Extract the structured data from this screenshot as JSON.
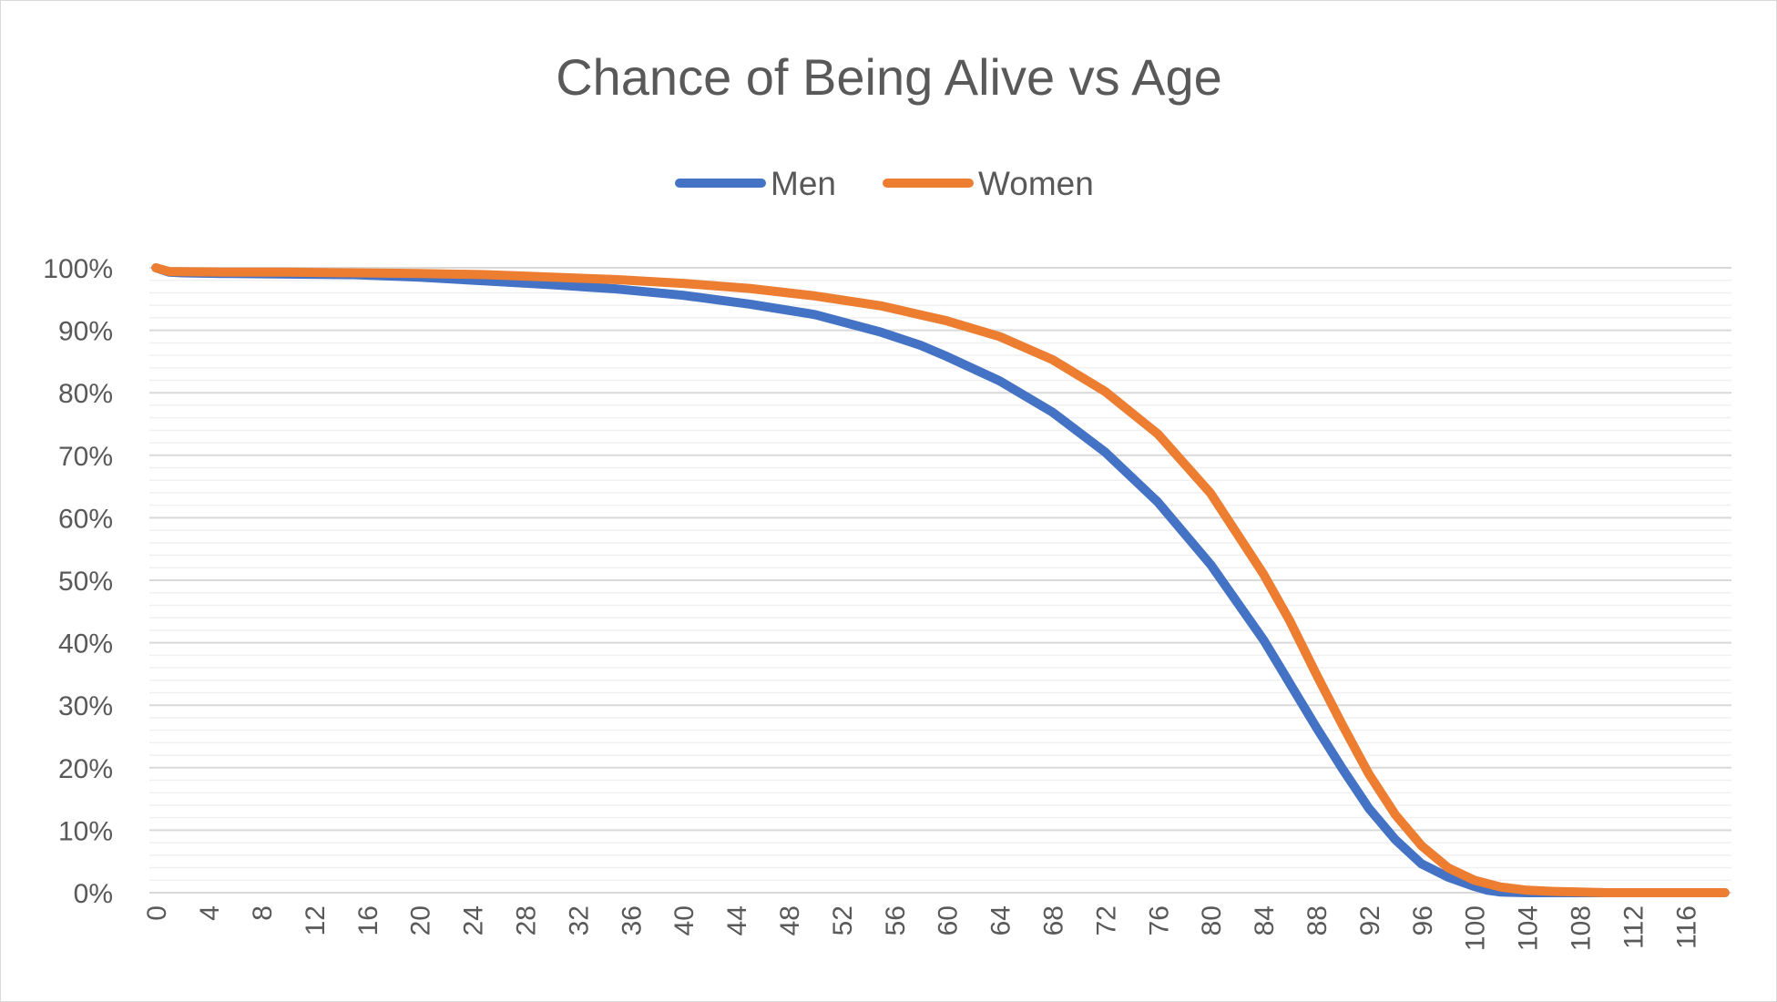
{
  "chart_data": {
    "type": "line",
    "title": "Chance of Being Alive vs Age",
    "xlabel": "",
    "ylabel": "",
    "x_range": [
      0,
      119
    ],
    "x_tick_labels": [
      "0",
      "4",
      "8",
      "12",
      "16",
      "20",
      "24",
      "28",
      "32",
      "36",
      "40",
      "44",
      "48",
      "52",
      "56",
      "60",
      "64",
      "68",
      "72",
      "76",
      "80",
      "84",
      "88",
      "92",
      "96",
      "100",
      "104",
      "108",
      "112",
      "116"
    ],
    "y_range": [
      0,
      100
    ],
    "y_tick_labels": [
      "0%",
      "10%",
      "20%",
      "30%",
      "40%",
      "50%",
      "60%",
      "70%",
      "80%",
      "90%",
      "100%"
    ],
    "y_unit": "%",
    "grid": {
      "major": true,
      "minor": true
    },
    "legend_position": "top-center",
    "series": [
      {
        "name": "Men",
        "color": "#4472c4",
        "points": [
          [
            0,
            100
          ],
          [
            1,
            99.3
          ],
          [
            2,
            99.2
          ],
          [
            5,
            99.1
          ],
          [
            10,
            99.0
          ],
          [
            15,
            98.9
          ],
          [
            20,
            98.5
          ],
          [
            25,
            97.9
          ],
          [
            30,
            97.3
          ],
          [
            35,
            96.6
          ],
          [
            40,
            95.6
          ],
          [
            45,
            94.2
          ],
          [
            50,
            92.5
          ],
          [
            55,
            89.7
          ],
          [
            58,
            87.6
          ],
          [
            60,
            85.8
          ],
          [
            64,
            81.9
          ],
          [
            68,
            76.9
          ],
          [
            72,
            70.5
          ],
          [
            76,
            62.5
          ],
          [
            80,
            52.5
          ],
          [
            84,
            40.5
          ],
          [
            88,
            26.5
          ],
          [
            90,
            19.8
          ],
          [
            92,
            13.5
          ],
          [
            94,
            8.5
          ],
          [
            96,
            4.6
          ],
          [
            98,
            2.5
          ],
          [
            100,
            1.0
          ],
          [
            101,
            0.4
          ],
          [
            102,
            0.1
          ],
          [
            104,
            0.0
          ],
          [
            108,
            0.0
          ],
          [
            112,
            0.0
          ],
          [
            116,
            0.0
          ],
          [
            119,
            0.0
          ]
        ]
      },
      {
        "name": "Women",
        "color": "#ed7d31",
        "points": [
          [
            0,
            100
          ],
          [
            1,
            99.4
          ],
          [
            5,
            99.3
          ],
          [
            10,
            99.3
          ],
          [
            15,
            99.2
          ],
          [
            20,
            99.1
          ],
          [
            25,
            98.9
          ],
          [
            30,
            98.5
          ],
          [
            35,
            98.1
          ],
          [
            40,
            97.5
          ],
          [
            45,
            96.7
          ],
          [
            50,
            95.5
          ],
          [
            55,
            93.9
          ],
          [
            60,
            91.5
          ],
          [
            64,
            89.0
          ],
          [
            68,
            85.3
          ],
          [
            72,
            80.2
          ],
          [
            76,
            73.4
          ],
          [
            80,
            63.9
          ],
          [
            84,
            51.0
          ],
          [
            86,
            43.5
          ],
          [
            88,
            35.0
          ],
          [
            90,
            26.8
          ],
          [
            92,
            19.0
          ],
          [
            94,
            12.5
          ],
          [
            96,
            7.5
          ],
          [
            98,
            4.0
          ],
          [
            100,
            2.0
          ],
          [
            102,
            0.9
          ],
          [
            104,
            0.4
          ],
          [
            106,
            0.2
          ],
          [
            108,
            0.1
          ],
          [
            110,
            0.0
          ],
          [
            114,
            0.0
          ],
          [
            119,
            0.0
          ]
        ]
      }
    ]
  }
}
